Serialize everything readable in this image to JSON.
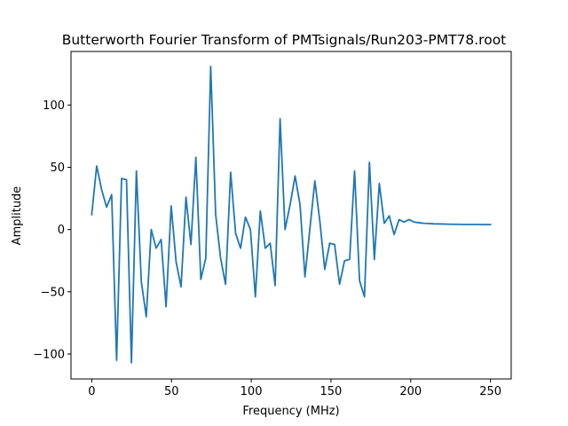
{
  "chart_data": {
    "type": "line",
    "title": "Butterworth Fourier Transform of PMTsignals/Run203-PMT78.root",
    "xlabel": "Frequency (MHz)",
    "ylabel": "Amplitude",
    "xlim": [
      -13,
      263
    ],
    "ylim": [
      -120,
      143
    ],
    "xticks": [
      0,
      50,
      100,
      150,
      200,
      250
    ],
    "yticks": [
      -100,
      -50,
      0,
      50,
      100
    ],
    "xtick_labels": [
      "0",
      "50",
      "100",
      "150",
      "200",
      "250"
    ],
    "ytick_labels": [
      "−100",
      "−50",
      "0",
      "50",
      "100"
    ],
    "grid": false,
    "series_color": "#1f77b4",
    "series": [
      {
        "x": [
          0,
          3.1,
          6.2,
          9.3,
          12.5,
          15.6,
          18.7,
          21.8,
          24.9,
          28.0,
          31.1,
          34.2,
          37.3,
          40.4,
          43.5,
          46.6,
          49.8,
          52.9,
          56.0,
          59.1,
          62.2,
          65.3,
          68.4,
          71.5,
          74.6,
          77.7,
          80.8,
          83.9,
          87.1,
          90.2,
          93.3,
          96.4,
          99.5,
          102.6,
          105.7,
          108.8,
          111.9,
          115.0,
          118.1,
          121.2,
          124.4,
          127.5,
          130.6,
          133.7,
          136.8,
          139.9,
          143.0,
          146.1,
          149.2,
          152.3,
          155.4,
          158.5,
          161.7,
          164.8,
          167.9,
          171.0,
          174.1,
          177.2,
          180.3,
          183.4,
          186.5,
          189.6,
          192.7,
          195.8,
          199.0,
          202.1,
          205.2,
          208.3,
          211.4,
          214.5,
          217.6,
          220.7,
          223.8,
          226.9,
          230.0,
          233.1,
          236.3,
          239.4,
          242.5,
          245.6,
          248.7,
          250
        ],
        "values": [
          12,
          51,
          32,
          18,
          28,
          -105,
          41,
          40,
          -107,
          47,
          -42,
          -70,
          0,
          -15,
          -8,
          -62,
          19,
          -26,
          -46,
          26,
          -12,
          58,
          -40,
          -23,
          131,
          12,
          -23,
          -44,
          46,
          -3,
          -15,
          10,
          0,
          -54,
          15,
          -15,
          -11,
          -45,
          89,
          0,
          20,
          43,
          20,
          -38,
          1,
          39,
          7,
          -32,
          -11,
          -12,
          -44,
          -25,
          -24,
          47,
          -41,
          -54,
          54,
          -24,
          37,
          5,
          11,
          -4,
          8,
          6,
          8,
          6,
          5.5,
          5,
          4.8,
          4.6,
          4.5,
          4.4,
          4.3,
          4.2,
          4.2,
          4.1,
          4.1,
          4.1,
          4.1,
          4.0,
          4.0,
          4.0
        ]
      }
    ]
  }
}
